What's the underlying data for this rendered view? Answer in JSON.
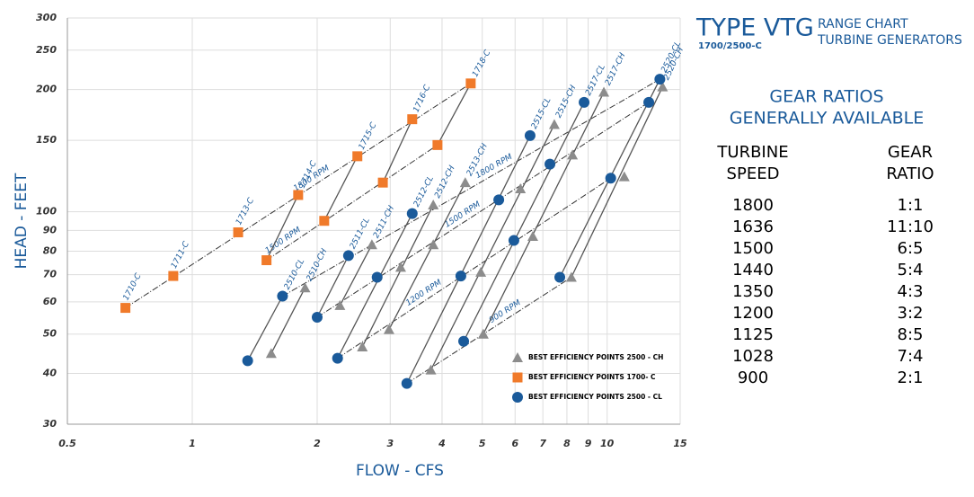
{
  "chart_data": {
    "type": "scatter",
    "xlabel": "FLOW - CFS",
    "ylabel": "HEAD - FEET",
    "xscale": "log",
    "yscale": "log",
    "xlim": [
      0.5,
      15
    ],
    "ylim": [
      30,
      300
    ],
    "xticks": [
      0.5,
      1,
      2,
      3,
      4,
      5,
      6,
      7,
      8,
      9,
      10,
      15
    ],
    "yticks": [
      30,
      40,
      50,
      60,
      70,
      80,
      90,
      100,
      150,
      200,
      250,
      300
    ],
    "grid": true,
    "legend": "lower right",
    "series": [
      {
        "name": "BEST EFFICIENCY POINTS 2500 - CH",
        "color": "#8c8c8c",
        "marker": "triangle",
        "x": [
          1.55,
          1.87,
          2.27,
          2.71,
          2.57,
          3.18,
          3.81,
          2.98,
          3.76,
          3.81,
          4.96,
          5.03,
          4.55,
          6.18,
          6.62,
          7.46,
          8.25,
          8.2,
          9.82,
          11.0,
          13.6
        ],
        "values": [
          44.8,
          65,
          58.8,
          83,
          46.5,
          73,
          104,
          51.3,
          40.8,
          83,
          71,
          50,
          118,
          114,
          87,
          164,
          138,
          69,
          197,
          122,
          203
        ]
      },
      {
        "name": "BEST EFFICIENCY POINTS 1700- C",
        "color": "#f07a2a",
        "marker": "square",
        "x": [
          0.69,
          0.9,
          1.29,
          1.8,
          2.5,
          3.39,
          4.69,
          1.51,
          2.08,
          2.88,
          3.9
        ],
        "values": [
          58,
          69.5,
          89,
          110,
          137,
          169,
          207,
          76,
          95,
          118,
          146
        ],
        "point_labels": [
          "1710-C",
          "1711-C",
          "1713-C",
          null,
          null,
          null,
          null,
          null,
          null,
          null,
          null
        ]
      },
      {
        "name": "BEST EFFICIENCY POINTS 2500 - CL",
        "color": "#1a5a9a",
        "marker": "circle",
        "x": [
          1.36,
          1.65,
          2.0,
          2.38,
          2.24,
          2.79,
          3.39,
          3.29,
          4.44,
          4.51,
          5.48,
          5.96,
          6.52,
          7.28,
          7.69,
          8.8,
          10.2,
          12.6,
          13.4
        ],
        "values": [
          43,
          62,
          55,
          78,
          43.6,
          69,
          99,
          37.8,
          69.5,
          48,
          107,
          85,
          154,
          131,
          69,
          186,
          121,
          186,
          212
        ]
      }
    ],
    "model_lines": [
      {
        "label": "1714-C",
        "x": [
          1.51,
          1.8
        ],
        "y": [
          76,
          110
        ]
      },
      {
        "label": "1715-C",
        "x": [
          2.08,
          2.5
        ],
        "y": [
          95,
          137
        ]
      },
      {
        "label": "1716-C",
        "x": [
          2.88,
          3.39
        ],
        "y": [
          118,
          169
        ]
      },
      {
        "label": "1718-C",
        "x": [
          3.9,
          4.69
        ],
        "y": [
          146,
          207
        ]
      },
      {
        "label": "2510-CL",
        "x": [
          1.36,
          1.65
        ],
        "y": [
          43,
          62
        ]
      },
      {
        "label": "2510-CH",
        "x": [
          1.55,
          1.87
        ],
        "y": [
          44.8,
          65
        ]
      },
      {
        "label": "2511-CL",
        "x": [
          2.0,
          2.38
        ],
        "y": [
          55,
          78
        ]
      },
      {
        "label": "2511-CH",
        "x": [
          2.27,
          2.71
        ],
        "y": [
          58.8,
          83
        ]
      },
      {
        "label": "2512-CL",
        "x": [
          2.24,
          3.39
        ],
        "y": [
          43.6,
          99
        ]
      },
      {
        "label": "2512-CH",
        "x": [
          2.57,
          3.81
        ],
        "y": [
          46.5,
          104
        ]
      },
      {
        "label": "2513-CH",
        "x": [
          2.98,
          4.55
        ],
        "y": [
          51.3,
          118
        ]
      },
      {
        "label": "2515-CL",
        "x": [
          3.29,
          6.52
        ],
        "y": [
          37.8,
          154
        ]
      },
      {
        "label": "2515-CH",
        "x": [
          3.76,
          7.46
        ],
        "y": [
          40.8,
          164
        ]
      },
      {
        "label": "2517-CL",
        "x": [
          4.51,
          8.8
        ],
        "y": [
          48,
          186
        ]
      },
      {
        "label": "2517-CH",
        "x": [
          5.03,
          9.82
        ],
        "y": [
          50,
          197
        ]
      },
      {
        "label": "2520-CL",
        "x": [
          7.69,
          13.4
        ],
        "y": [
          69,
          212
        ]
      },
      {
        "label": "2520-CH",
        "x": [
          8.2,
          13.6
        ],
        "y": [
          69,
          203
        ]
      }
    ],
    "rpm_lines": [
      {
        "label": "1800 RPM",
        "x": [
          0.69,
          4.69
        ],
        "y": [
          58,
          207
        ]
      },
      {
        "label": "1500 RPM",
        "x": [
          1.51,
          3.9
        ],
        "y": [
          76,
          146
        ]
      },
      {
        "label": "1800 RPM",
        "x": [
          1.65,
          13.4
        ],
        "y": [
          62,
          212
        ]
      },
      {
        "label": "1500 RPM",
        "x": [
          2.0,
          12.6
        ],
        "y": [
          55,
          186
        ]
      },
      {
        "label": "1200 RPM",
        "x": [
          2.24,
          10.2
        ],
        "y": [
          43.6,
          121
        ]
      },
      {
        "label": "900 RPM",
        "x": [
          3.29,
          8.2
        ],
        "y": [
          37.8,
          69
        ]
      }
    ]
  },
  "panel": {
    "title": "TYPE VTG",
    "subtitle": "1700/2500-C",
    "heading": [
      "RANGE CHART",
      "TURBINE GENERATORS"
    ],
    "gear_title": [
      "GEAR RATIOS",
      "GENERALLY AVAILABLE"
    ],
    "columns": [
      [
        "TURBINE",
        "SPEED"
      ],
      [
        "GEAR",
        "RATIO"
      ]
    ],
    "rows": [
      [
        1800,
        "1:1"
      ],
      [
        1636,
        "11:10"
      ],
      [
        1500,
        "6:5"
      ],
      [
        1440,
        "5:4"
      ],
      [
        1350,
        "4:3"
      ],
      [
        1200,
        "3:2"
      ],
      [
        1125,
        "8:5"
      ],
      [
        1028,
        "7:4"
      ],
      [
        900,
        "2:1"
      ]
    ]
  }
}
